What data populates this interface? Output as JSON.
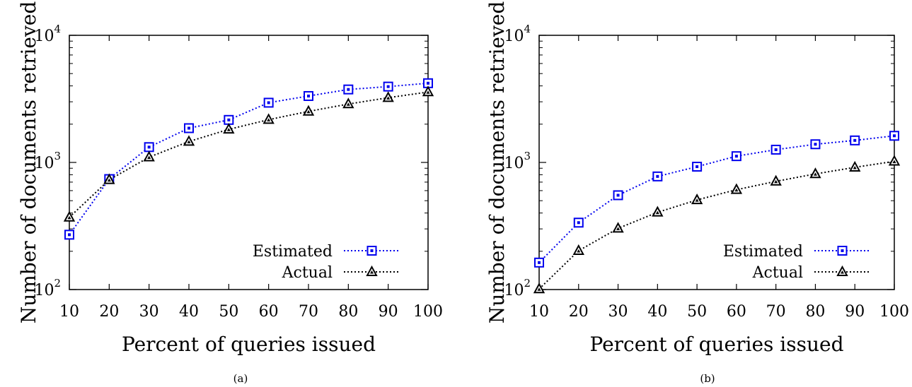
{
  "chart_data": [
    {
      "type": "line",
      "panel_label": "(a)",
      "xlabel": "Percent of queries issued",
      "ylabel": "Number of documents retrieved",
      "x": [
        10,
        20,
        30,
        40,
        50,
        60,
        70,
        80,
        90,
        100
      ],
      "xlim": [
        10,
        100
      ],
      "ylim": [
        100,
        10000
      ],
      "yscale": "log",
      "yticks": [
        {
          "value": 100,
          "base": "10",
          "exp": "2"
        },
        {
          "value": 1000,
          "base": "10",
          "exp": "3"
        },
        {
          "value": 10000,
          "base": "10",
          "exp": "4"
        }
      ],
      "legend_position": "bottom-right",
      "grid": false,
      "series": [
        {
          "name": "Estimated",
          "color": "#0000ee",
          "marker": "square",
          "values": [
            270,
            740,
            1320,
            1860,
            2160,
            2950,
            3330,
            3750,
            3950,
            4200
          ]
        },
        {
          "name": "Actual",
          "color": "#000000",
          "marker": "triangle",
          "values": [
            370,
            730,
            1100,
            1460,
            1820,
            2170,
            2520,
            2880,
            3230,
            3580
          ]
        }
      ]
    },
    {
      "type": "line",
      "panel_label": "(b)",
      "xlabel": "Percent of queries issued",
      "ylabel": "Number of documents retrieved",
      "x": [
        10,
        20,
        30,
        40,
        50,
        60,
        70,
        80,
        90,
        100
      ],
      "xlim": [
        10,
        100
      ],
      "ylim": [
        100,
        10000
      ],
      "yscale": "log",
      "yticks": [
        {
          "value": 100,
          "base": "10",
          "exp": "2"
        },
        {
          "value": 1000,
          "base": "10",
          "exp": "3"
        },
        {
          "value": 10000,
          "base": "10",
          "exp": "4"
        }
      ],
      "legend_position": "bottom-right",
      "grid": false,
      "series": [
        {
          "name": "Estimated",
          "color": "#0000ee",
          "marker": "square",
          "values": [
            163,
            336,
            552,
            776,
            926,
            1120,
            1260,
            1390,
            1490,
            1620
          ]
        },
        {
          "name": "Actual",
          "color": "#000000",
          "marker": "triangle",
          "values": [
            101,
            202,
            303,
            405,
            507,
            610,
            710,
            812,
            915,
            1020
          ]
        }
      ]
    }
  ]
}
